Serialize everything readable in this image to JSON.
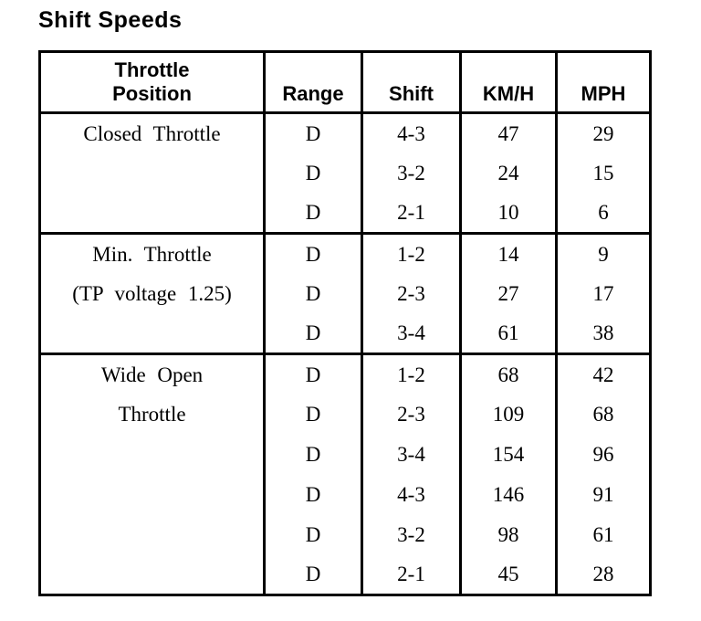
{
  "page": {
    "title": "Shift Speeds"
  },
  "colors": {
    "background": "#ffffff",
    "text": "#000000",
    "border": "#000000"
  },
  "table": {
    "headers": {
      "throttle_line1": "Throttle",
      "throttle_line2": "Position",
      "range": "Range",
      "shift": "Shift",
      "kmh": "KM/H",
      "mph": "MPH"
    },
    "sections": [
      {
        "label_lines": [
          "Closed Throttle"
        ],
        "rows": [
          {
            "range": "D",
            "shift": "4-3",
            "kmh": "47",
            "mph": "29"
          },
          {
            "range": "D",
            "shift": "3-2",
            "kmh": "24",
            "mph": "15"
          },
          {
            "range": "D",
            "shift": "2-1",
            "kmh": "10",
            "mph": "6"
          }
        ]
      },
      {
        "label_lines": [
          "Min. Throttle",
          "(TP voltage 1.25)"
        ],
        "rows": [
          {
            "range": "D",
            "shift": "1-2",
            "kmh": "14",
            "mph": "9"
          },
          {
            "range": "D",
            "shift": "2-3",
            "kmh": "27",
            "mph": "17"
          },
          {
            "range": "D",
            "shift": "3-4",
            "kmh": "61",
            "mph": "38"
          }
        ]
      },
      {
        "label_lines": [
          "Wide Open",
          "Throttle"
        ],
        "rows": [
          {
            "range": "D",
            "shift": "1-2",
            "kmh": "68",
            "mph": "42"
          },
          {
            "range": "D",
            "shift": "2-3",
            "kmh": "109",
            "mph": "68"
          },
          {
            "range": "D",
            "shift": "3-4",
            "kmh": "154",
            "mph": "96"
          },
          {
            "range": "D",
            "shift": "4-3",
            "kmh": "146",
            "mph": "91"
          },
          {
            "range": "D",
            "shift": "3-2",
            "kmh": "98",
            "mph": "61"
          },
          {
            "range": "D",
            "shift": "2-1",
            "kmh": "45",
            "mph": "28"
          }
        ]
      }
    ]
  }
}
